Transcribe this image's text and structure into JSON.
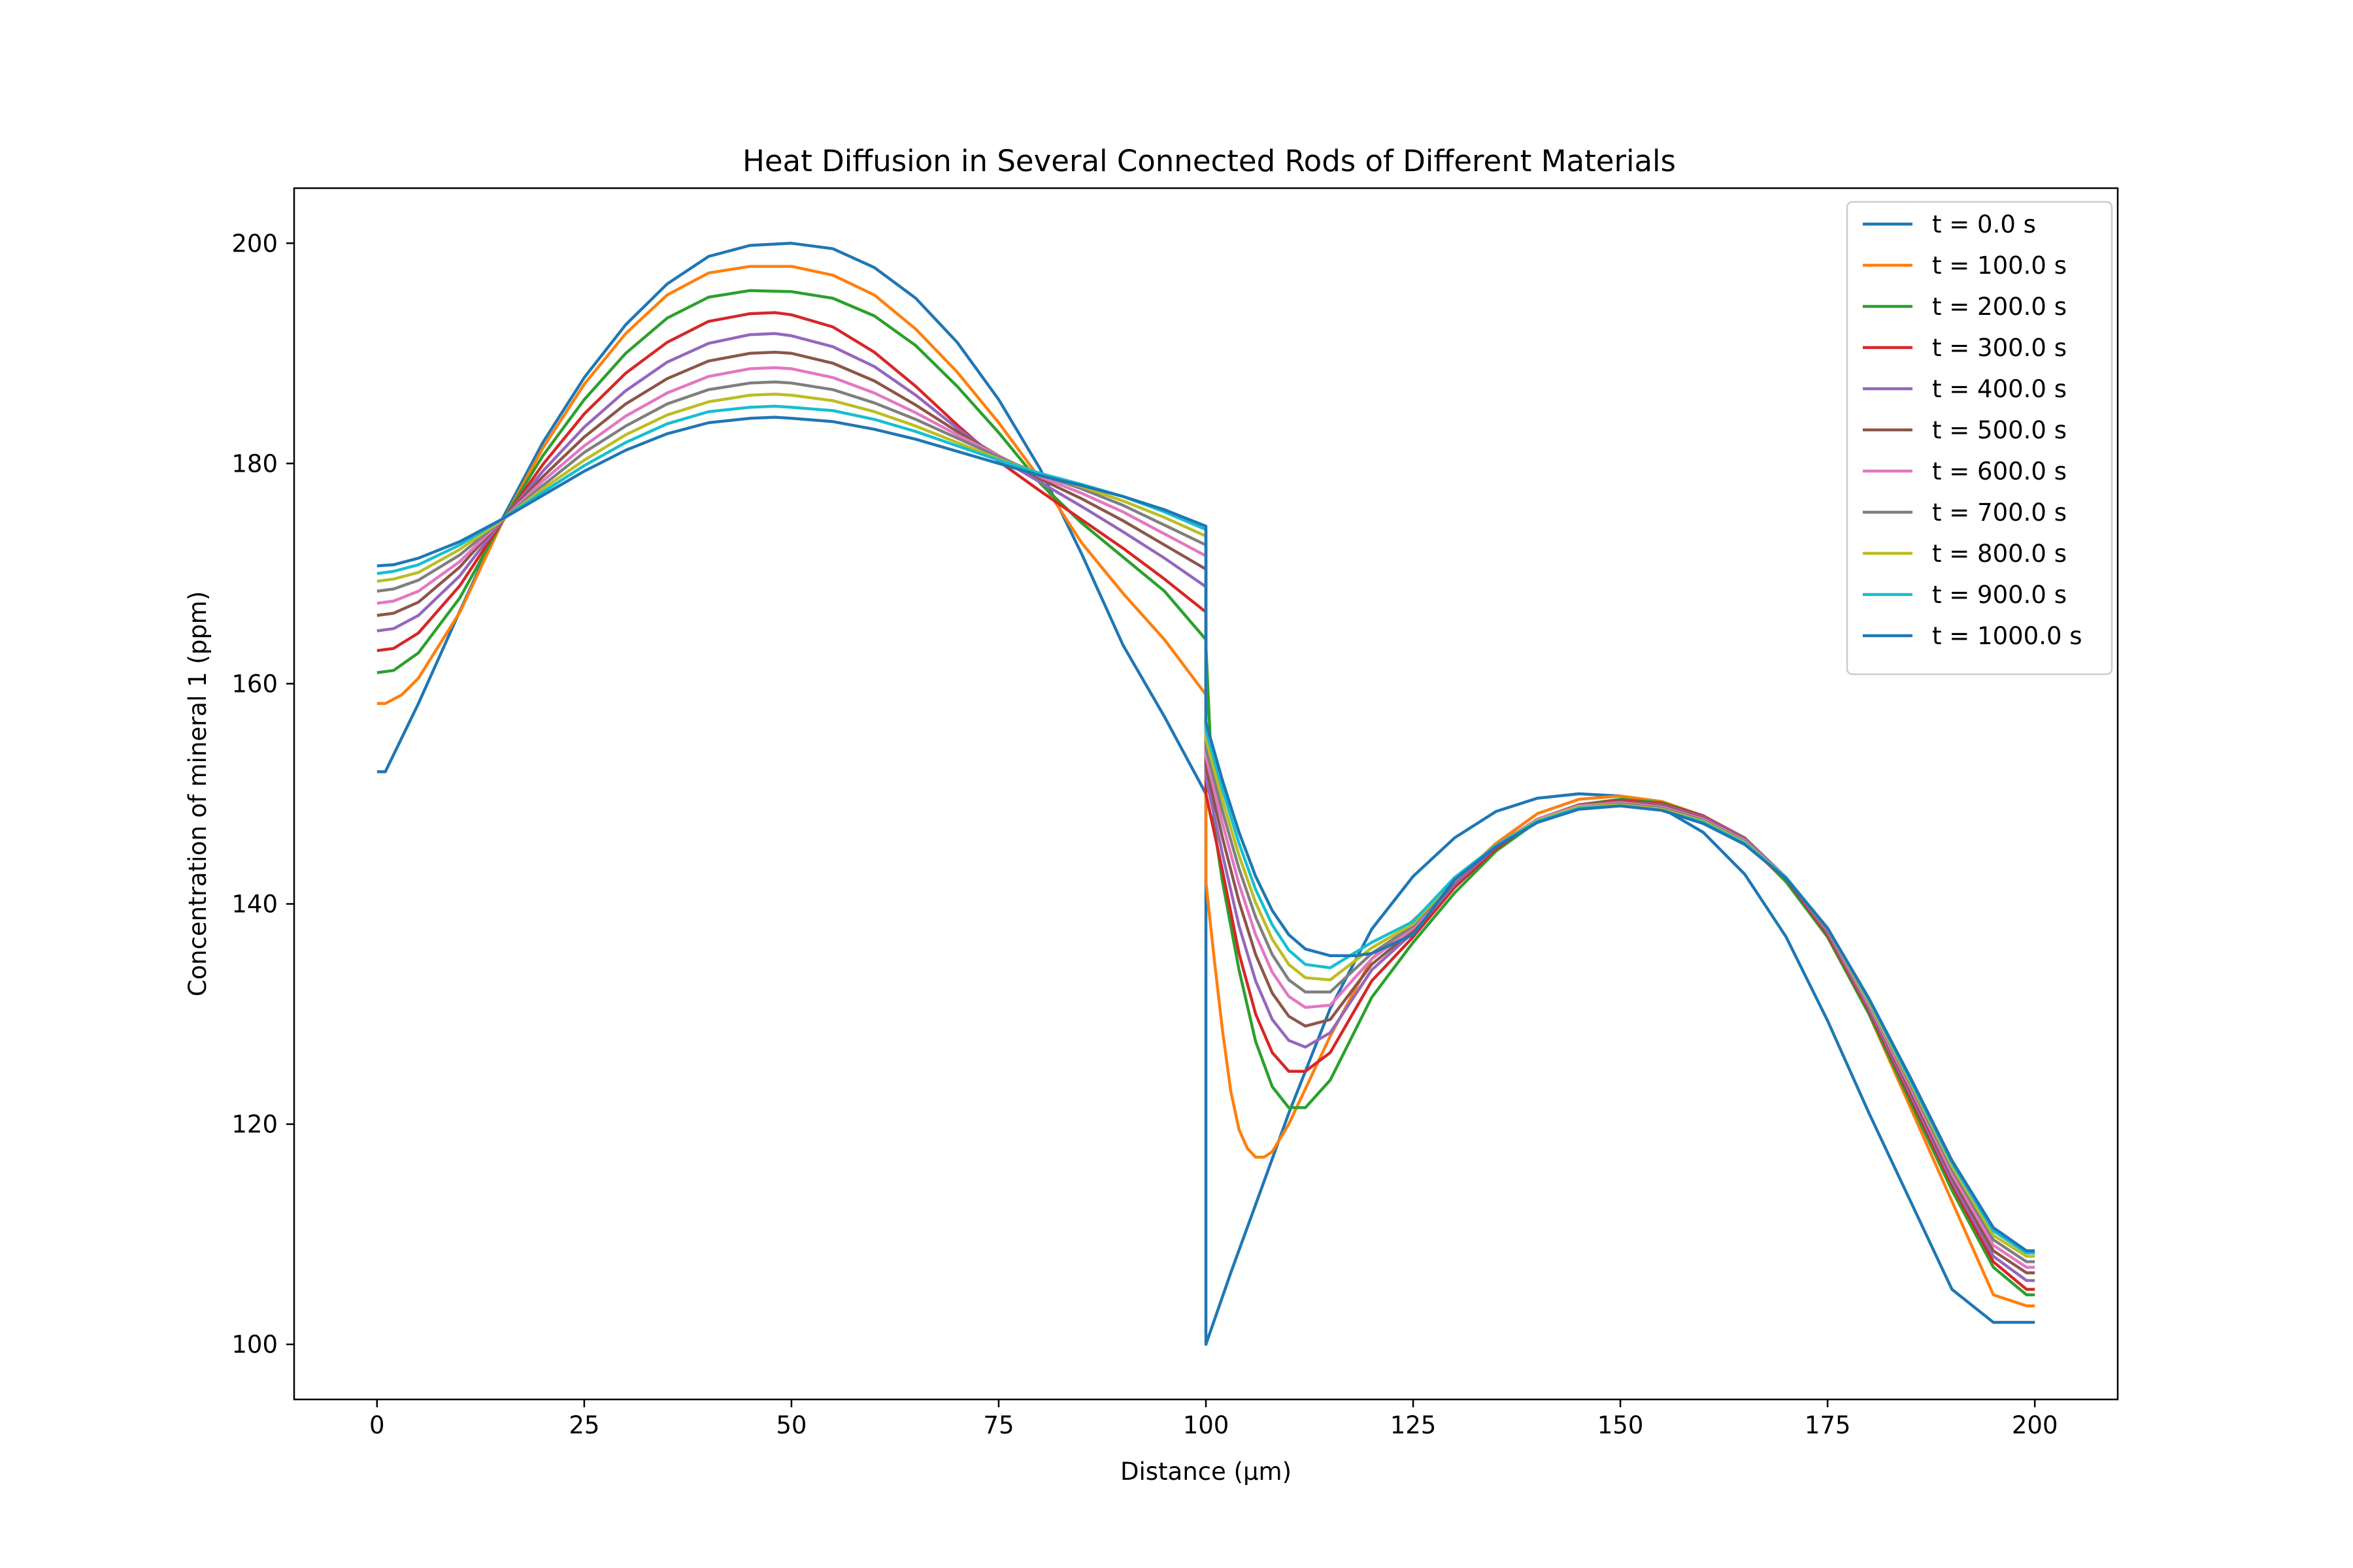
{
  "chart_data": {
    "type": "line",
    "title": "Heat Diffusion in Several Connected Rods of Different Materials",
    "xlabel": "Distance (μm)",
    "ylabel": "Concentration of mineral 1 (ppm)",
    "xlim": [
      -10,
      210
    ],
    "ylim": [
      95,
      205
    ],
    "xticks": [
      0,
      25,
      50,
      75,
      100,
      125,
      150,
      175,
      200
    ],
    "yticks": [
      100,
      120,
      140,
      160,
      180,
      200
    ],
    "grid": false,
    "legend_position": "top-right",
    "series": [
      {
        "name": "t = 0.0 s",
        "color": "#1f77b4",
        "x": [
          0,
          1,
          5,
          10,
          15,
          20,
          25,
          30,
          35,
          40,
          45,
          50,
          55,
          60,
          65,
          70,
          75,
          80,
          85,
          90,
          95,
          100,
          100,
          103,
          106,
          110,
          115,
          120,
          125,
          130,
          135,
          140,
          145,
          150,
          155,
          160,
          165,
          170,
          175,
          180,
          185,
          190,
          195,
          199,
          200
        ],
        "y": [
          152,
          152,
          158.2,
          166.6,
          174.8,
          181.9,
          187.8,
          192.6,
          196.3,
          198.8,
          199.8,
          200,
          199.5,
          197.8,
          195,
          191,
          185.8,
          179.5,
          171.8,
          163.5,
          157,
          150,
          100,
          106.5,
          112.7,
          121,
          130.5,
          137.7,
          142.5,
          146,
          148.4,
          149.6,
          150,
          149.8,
          148.7,
          146.5,
          142.7,
          137,
          129.4,
          121,
          113,
          105,
          102,
          102,
          102
        ]
      },
      {
        "name": "t = 100.0 s",
        "color": "#ff7f0e",
        "x": [
          0,
          1,
          3,
          5,
          10,
          15,
          20,
          25,
          30,
          35,
          40,
          45,
          50,
          55,
          60,
          65,
          70,
          75,
          80,
          85,
          90,
          95,
          100,
          100,
          101,
          102,
          103,
          104,
          105,
          106,
          107,
          108,
          110,
          115,
          120,
          125,
          130,
          135,
          140,
          145,
          150,
          155,
          160,
          165,
          170,
          175,
          180,
          185,
          190,
          195,
          199,
          200
        ],
        "y": [
          158.2,
          158.2,
          159,
          160.5,
          166.5,
          174.5,
          181.4,
          187.2,
          191.8,
          195.3,
          197.3,
          197.9,
          197.9,
          197.1,
          195.3,
          192.2,
          188.3,
          183.7,
          178.6,
          172.8,
          168.2,
          164,
          159,
          142,
          135,
          128.5,
          123,
          119.5,
          117.8,
          117,
          117,
          117.5,
          120,
          128,
          135,
          138.5,
          142,
          145.5,
          148.2,
          149.5,
          149.8,
          149.3,
          148,
          145.7,
          142,
          137,
          130,
          121.5,
          113,
          104.5,
          103.5,
          103.5
        ]
      },
      {
        "name": "t = 200.0 s",
        "color": "#2ca02c",
        "x": [
          0,
          2,
          5,
          10,
          15,
          20,
          25,
          30,
          35,
          40,
          45,
          50,
          55,
          60,
          65,
          70,
          75,
          80,
          85,
          90,
          95,
          100,
          100,
          101,
          102,
          104,
          106,
          108,
          110,
          112,
          115,
          120,
          125,
          130,
          135,
          140,
          145,
          150,
          155,
          160,
          165,
          170,
          175,
          180,
          185,
          190,
          195,
          199,
          200
        ],
        "y": [
          161,
          161.2,
          162.8,
          167.8,
          174.6,
          180.7,
          185.8,
          190,
          193.2,
          195.1,
          195.7,
          195.6,
          195,
          193.4,
          190.7,
          187,
          182.8,
          178.2,
          174.6,
          171.5,
          168.4,
          164,
          163.5,
          147,
          142,
          134,
          127.5,
          123.4,
          121.5,
          121.5,
          124,
          131.5,
          136.5,
          141,
          144.8,
          147.5,
          149,
          149.5,
          149.2,
          148,
          145.9,
          142,
          137,
          130,
          122,
          114,
          107,
          104.5,
          104.5
        ]
      },
      {
        "name": "t = 300.0 s",
        "color": "#d62728",
        "x": [
          0,
          2,
          5,
          10,
          15,
          20,
          25,
          30,
          35,
          40,
          45,
          48,
          50,
          55,
          60,
          65,
          70,
          75,
          80,
          85,
          90,
          95,
          100,
          100,
          102,
          104,
          106,
          108,
          110,
          112,
          115,
          120,
          125,
          130,
          135,
          140,
          145,
          150,
          155,
          160,
          165,
          170,
          175,
          180,
          185,
          190,
          195,
          199,
          200
        ],
        "y": [
          163,
          163.2,
          164.6,
          168.9,
          174.6,
          179.9,
          184.5,
          188.2,
          191,
          192.9,
          193.6,
          193.7,
          193.5,
          192.4,
          190.1,
          187,
          183.5,
          180.2,
          177.5,
          174.9,
          172.3,
          169.5,
          166.5,
          150,
          143,
          135.5,
          130,
          126.5,
          124.8,
          124.8,
          126.5,
          133,
          137,
          141.5,
          145,
          147.6,
          149,
          149.4,
          149.1,
          148,
          146,
          142.3,
          137.2,
          130.3,
          122.4,
          114.5,
          107.5,
          105,
          105
        ]
      },
      {
        "name": "t = 400.0 s",
        "color": "#9467bd",
        "x": [
          0,
          2,
          5,
          10,
          15,
          20,
          25,
          30,
          35,
          40,
          45,
          48,
          50,
          55,
          60,
          65,
          70,
          75,
          80,
          85,
          90,
          95,
          100,
          100,
          102,
          104,
          106,
          108,
          110,
          112,
          115,
          120,
          125,
          130,
          135,
          140,
          145,
          150,
          155,
          160,
          165,
          170,
          175,
          180,
          185,
          190,
          195,
          199,
          200
        ],
        "y": [
          164.8,
          165,
          166.2,
          169.8,
          174.7,
          179.3,
          183.3,
          186.6,
          189.2,
          190.9,
          191.7,
          191.8,
          191.6,
          190.6,
          188.8,
          186.2,
          183.2,
          180.5,
          178.3,
          176.1,
          173.8,
          171.4,
          168.8,
          151.5,
          144.5,
          138,
          133,
          129.5,
          127.6,
          127,
          128.3,
          134,
          137.4,
          141.8,
          145.2,
          147.7,
          149,
          149.3,
          149,
          147.9,
          146,
          142.4,
          137.4,
          130.5,
          122.7,
          114.8,
          108,
          105.8,
          105.8
        ]
      },
      {
        "name": "t = 500.0 s",
        "color": "#8c564b",
        "x": [
          0,
          2,
          5,
          10,
          15,
          20,
          25,
          30,
          35,
          40,
          45,
          48,
          50,
          55,
          60,
          65,
          70,
          75,
          80,
          85,
          90,
          95,
          100,
          100,
          102,
          104,
          106,
          108,
          110,
          112,
          115,
          120,
          125,
          130,
          135,
          140,
          145,
          150,
          155,
          160,
          165,
          170,
          175,
          180,
          185,
          190,
          195,
          199,
          200
        ],
        "y": [
          166.2,
          166.4,
          167.4,
          170.6,
          174.8,
          178.8,
          182.4,
          185.4,
          187.7,
          189.3,
          190,
          190.1,
          190,
          189.1,
          187.5,
          185.3,
          182.9,
          180.7,
          178.6,
          176.8,
          174.8,
          172.6,
          170.4,
          152.5,
          146,
          140.2,
          135.4,
          131.9,
          129.8,
          128.9,
          129.5,
          134.5,
          137.6,
          142,
          145.3,
          147.7,
          149,
          149.3,
          148.9,
          147.8,
          145.9,
          142.4,
          137.5,
          130.7,
          123,
          115.2,
          108.5,
          106.5,
          106.5
        ]
      },
      {
        "name": "t = 600.0 s",
        "color": "#e377c2",
        "x": [
          0,
          2,
          5,
          10,
          15,
          20,
          25,
          30,
          35,
          40,
          45,
          48,
          50,
          55,
          60,
          65,
          70,
          75,
          80,
          85,
          90,
          95,
          100,
          100,
          102,
          104,
          106,
          108,
          110,
          112,
          115,
          120,
          125,
          130,
          135,
          140,
          145,
          150,
          155,
          160,
          165,
          170,
          175,
          180,
          185,
          190,
          195,
          199,
          200
        ],
        "y": [
          167.3,
          167.5,
          168.4,
          171.1,
          174.8,
          178.4,
          181.6,
          184.3,
          186.4,
          187.9,
          188.6,
          188.7,
          188.6,
          187.8,
          186.4,
          184.6,
          182.6,
          180.7,
          178.8,
          177.3,
          175.6,
          173.6,
          171.6,
          153.4,
          147.3,
          141.8,
          137.2,
          133.8,
          131.6,
          130.6,
          130.8,
          135,
          137.8,
          142.1,
          145.3,
          147.7,
          148.9,
          149.2,
          148.8,
          147.7,
          145.8,
          142.4,
          137.6,
          130.8,
          123.3,
          115.5,
          109,
          107,
          107
        ]
      },
      {
        "name": "t = 700.0 s",
        "color": "#7f7f7f",
        "x": [
          0,
          2,
          5,
          10,
          15,
          20,
          25,
          30,
          35,
          40,
          45,
          48,
          50,
          55,
          60,
          65,
          70,
          75,
          80,
          85,
          90,
          95,
          100,
          100,
          102,
          104,
          106,
          108,
          110,
          112,
          115,
          120,
          125,
          130,
          135,
          140,
          145,
          150,
          155,
          160,
          165,
          170,
          175,
          180,
          185,
          190,
          195,
          199,
          200
        ],
        "y": [
          168.4,
          168.6,
          169.4,
          171.7,
          174.8,
          178,
          181,
          183.4,
          185.4,
          186.7,
          187.3,
          187.4,
          187.3,
          186.7,
          185.5,
          184,
          182.3,
          180.6,
          179,
          177.7,
          176.2,
          174.4,
          172.6,
          154.2,
          148.4,
          143.2,
          138.8,
          135.4,
          133.1,
          132,
          132,
          135.5,
          138,
          142.2,
          145.3,
          147.6,
          148.8,
          149.1,
          148.7,
          147.6,
          145.7,
          142.4,
          137.7,
          131,
          123.6,
          115.9,
          109.5,
          107.5,
          107.5
        ]
      },
      {
        "name": "t = 800.0 s",
        "color": "#bcbd22",
        "x": [
          0,
          2,
          5,
          10,
          15,
          20,
          25,
          30,
          35,
          40,
          45,
          48,
          50,
          55,
          60,
          65,
          70,
          75,
          80,
          85,
          90,
          95,
          100,
          100,
          102,
          104,
          106,
          108,
          110,
          112,
          115,
          120,
          125,
          130,
          135,
          140,
          145,
          150,
          155,
          160,
          165,
          170,
          175,
          180,
          185,
          190,
          195,
          199,
          200
        ],
        "y": [
          169.3,
          169.5,
          170.1,
          172.2,
          174.8,
          177.7,
          180.3,
          182.6,
          184.4,
          185.6,
          186.2,
          186.3,
          186.2,
          185.7,
          184.7,
          183.4,
          181.9,
          180.4,
          179.1,
          177.9,
          176.6,
          175.1,
          173.4,
          155,
          149.4,
          144.4,
          140.1,
          136.8,
          134.5,
          133.3,
          133.1,
          136,
          138.2,
          142.3,
          145.3,
          147.6,
          148.8,
          149,
          148.6,
          147.5,
          145.6,
          142.4,
          137.8,
          131.1,
          123.8,
          116.2,
          109.9,
          108,
          108
        ]
      },
      {
        "name": "t = 900.0 s",
        "color": "#17becf",
        "x": [
          0,
          2,
          5,
          10,
          15,
          20,
          25,
          30,
          35,
          40,
          45,
          48,
          50,
          55,
          60,
          65,
          70,
          75,
          80,
          85,
          90,
          95,
          100,
          100,
          102,
          104,
          106,
          108,
          110,
          112,
          115,
          120,
          125,
          130,
          135,
          140,
          145,
          150,
          155,
          160,
          165,
          170,
          175,
          180,
          185,
          190,
          195,
          199,
          200
        ],
        "y": [
          170,
          170.2,
          170.8,
          172.6,
          174.9,
          177.4,
          179.8,
          181.9,
          183.6,
          184.7,
          185.1,
          185.2,
          185.1,
          184.8,
          184,
          182.9,
          181.6,
          180.3,
          179.1,
          178.1,
          177,
          175.6,
          174,
          155.8,
          150.4,
          145.5,
          141.3,
          138.1,
          135.8,
          134.5,
          134.2,
          136.5,
          138.4,
          142.4,
          145.3,
          147.5,
          148.7,
          148.9,
          148.5,
          147.4,
          145.5,
          142.4,
          137.8,
          131.3,
          124,
          116.5,
          110.3,
          108.3,
          108.3
        ]
      },
      {
        "name": "t = 1000.0 s",
        "color": "#1f77b4",
        "x": [
          0,
          2,
          5,
          10,
          15,
          20,
          25,
          30,
          35,
          40,
          45,
          48,
          50,
          55,
          60,
          65,
          70,
          75,
          80,
          85,
          90,
          95,
          100,
          100,
          102,
          104,
          106,
          108,
          110,
          112,
          115,
          118,
          120,
          125,
          130,
          135,
          140,
          145,
          150,
          155,
          160,
          165,
          170,
          175,
          180,
          185,
          190,
          195,
          199,
          200
        ],
        "y": [
          170.7,
          170.8,
          171.4,
          172.9,
          174.9,
          177.1,
          179.3,
          181.2,
          182.7,
          183.7,
          184.1,
          184.2,
          184.1,
          183.8,
          183.1,
          182.2,
          181.1,
          180,
          178.9,
          178,
          177,
          175.8,
          174.3,
          156.5,
          151.2,
          146.5,
          142.5,
          139.4,
          137.2,
          135.9,
          135.3,
          135.3,
          135.5,
          137.2,
          142.2,
          145.2,
          147.4,
          148.6,
          148.9,
          148.5,
          147.3,
          145.4,
          142.3,
          137.8,
          131.4,
          124.2,
          116.7,
          110.6,
          108.5,
          108.5
        ]
      }
    ]
  }
}
